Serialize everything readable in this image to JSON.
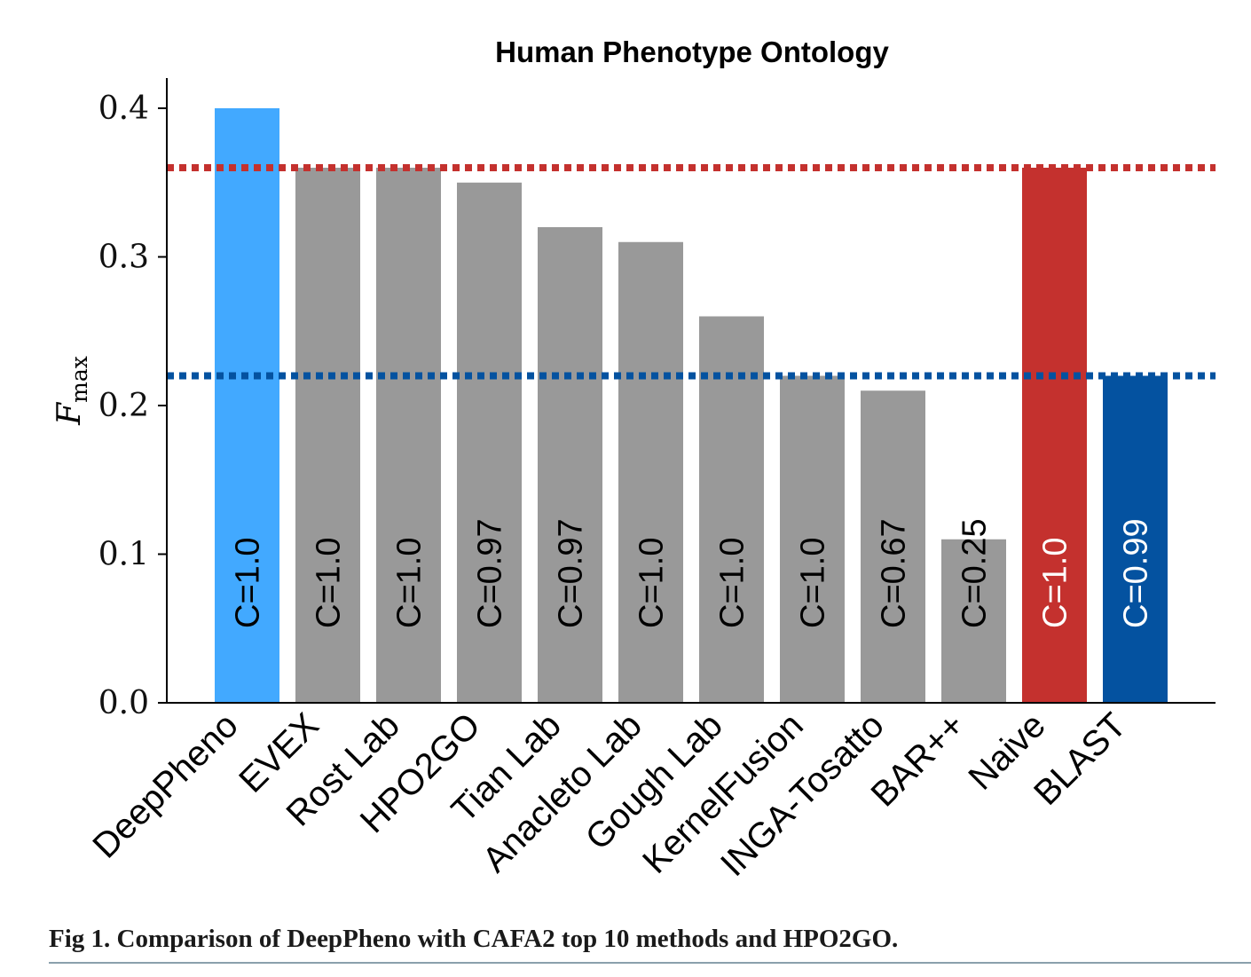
{
  "chart_data": {
    "type": "bar",
    "title": "Human Phenotype Ontology",
    "xlabel": "",
    "ylabel": "F",
    "ylabel_subscript": "max",
    "ylim": [
      0.0,
      0.42
    ],
    "yticks": [
      0.0,
      0.1,
      0.2,
      0.3,
      0.4
    ],
    "ytick_labels": [
      "0.0",
      "0.1",
      "0.2",
      "0.3",
      "0.4"
    ],
    "categories": [
      "DeepPheno",
      "EVEX",
      "Rost Lab",
      "HPO2GO",
      "Tian Lab",
      "Anacleto Lab",
      "Gough Lab",
      "KernelFusion",
      "INGA-Tosatto",
      "BAR++",
      "Naive",
      "BLAST"
    ],
    "values": [
      0.4,
      0.36,
      0.36,
      0.35,
      0.32,
      0.31,
      0.26,
      0.22,
      0.21,
      0.11,
      0.36,
      0.22
    ],
    "bar_labels": [
      "C=1.0",
      "C=1.0",
      "C=1.0",
      "C=0.97",
      "C=0.97",
      "C=1.0",
      "C=1.0",
      "C=1.0",
      "C=0.67",
      "C=0.25",
      "C=1.0",
      "C=0.99"
    ],
    "bar_colors": [
      "#42a9ff",
      "#999999",
      "#999999",
      "#999999",
      "#999999",
      "#999999",
      "#999999",
      "#999999",
      "#999999",
      "#999999",
      "#c4312e",
      "#0452a0"
    ],
    "bar_label_colors": [
      "#000000",
      "#000000",
      "#000000",
      "#000000",
      "#000000",
      "#000000",
      "#000000",
      "#000000",
      "#000000",
      "#000000",
      "#ffffff",
      "#ffffff"
    ],
    "reference_lines": [
      {
        "name": "Naive",
        "value": 0.36,
        "color": "#c4312e",
        "style": "dotted"
      },
      {
        "name": "BLAST",
        "value": 0.22,
        "color": "#0452a0",
        "style": "dotted"
      }
    ],
    "grid": false
  },
  "caption": "Fig 1.  Comparison of DeepPheno with CAFA2 top 10 methods and HPO2GO."
}
